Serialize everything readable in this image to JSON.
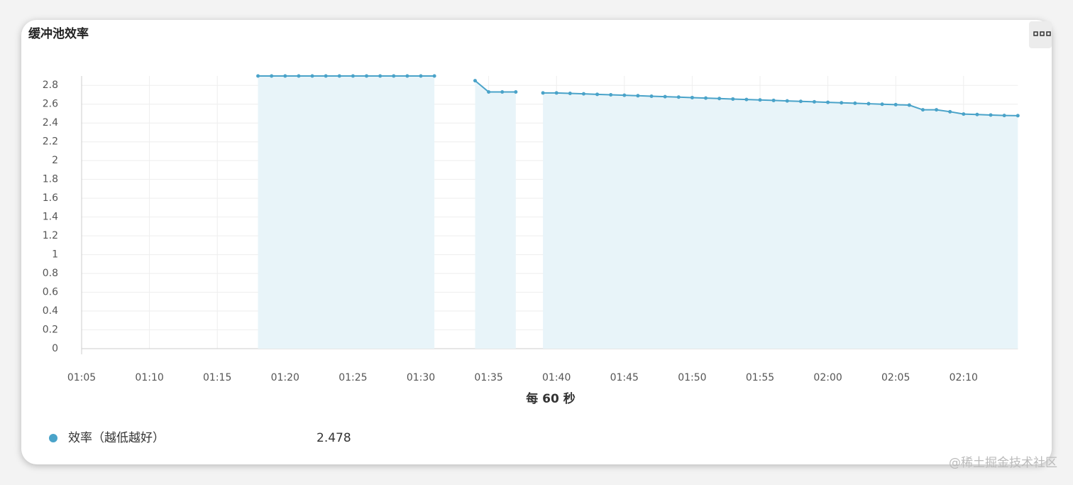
{
  "chart_data": {
    "type": "line",
    "title": "缓冲池效率",
    "x_label": "每 60 秒",
    "categories": [
      "01:05",
      null,
      null,
      null,
      null,
      "01:10",
      null,
      null,
      null,
      null,
      "01:15",
      null,
      null,
      null,
      null,
      "01:20",
      null,
      null,
      null,
      null,
      "01:25",
      null,
      null,
      null,
      null,
      "01:30",
      null,
      null,
      null,
      null,
      "01:35",
      null,
      null,
      null,
      null,
      "01:40",
      null,
      null,
      null,
      null,
      "01:45",
      null,
      null,
      null,
      null,
      "01:50",
      null,
      null,
      null,
      null,
      "01:55",
      null,
      null,
      null,
      null,
      "02:00",
      null,
      null,
      null,
      null,
      "02:05",
      null,
      null,
      null,
      null,
      "02:10",
      null,
      null,
      null,
      null
    ],
    "series": [
      {
        "name": "效率（越低越好）",
        "color": "#4aa3c9",
        "values": [
          null,
          null,
          null,
          null,
          null,
          null,
          null,
          null,
          null,
          null,
          null,
          null,
          null,
          2.9,
          2.9,
          2.9,
          2.9,
          2.9,
          2.9,
          2.9,
          2.9,
          2.9,
          2.9,
          2.9,
          2.9,
          2.9,
          2.9,
          null,
          null,
          2.85,
          2.73,
          2.73,
          2.73,
          null,
          2.72,
          2.72,
          2.715,
          2.71,
          2.705,
          2.7,
          2.695,
          2.69,
          2.685,
          2.68,
          2.675,
          2.67,
          2.665,
          2.66,
          2.655,
          2.65,
          2.645,
          2.64,
          2.635,
          2.63,
          2.625,
          2.62,
          2.615,
          2.61,
          2.605,
          2.6,
          2.595,
          2.59,
          2.54,
          2.54,
          2.52,
          2.495,
          2.49,
          2.485,
          2.48,
          2.478
        ]
      }
    ],
    "current_value": 2.478,
    "area_fill": "#e8f4f9",
    "ylim": [
      0,
      2.9
    ],
    "yticks": [
      0,
      0.2,
      0.4,
      0.6,
      0.8,
      1,
      1.2,
      1.4,
      1.6,
      1.8,
      2,
      2.2,
      2.4,
      2.6,
      2.8
    ],
    "grid": true
  },
  "watermark": "@稀土掘金技术社区"
}
